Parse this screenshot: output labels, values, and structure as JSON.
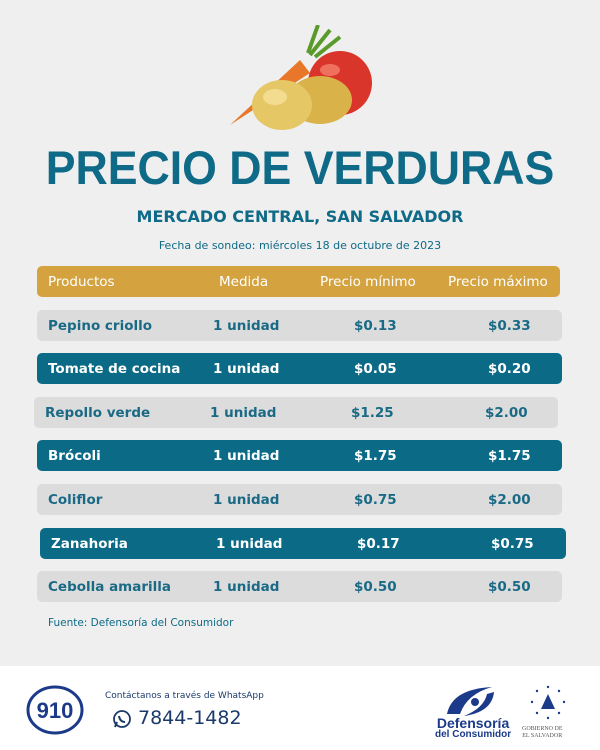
{
  "title": "PRECIO DE VERDURAS",
  "subtitle": "MERCADO CENTRAL, SAN SALVADOR",
  "date": "Fecha de sondeo: miércoles 18 de octubre de 2023",
  "table": {
    "headers": [
      "Productos",
      "Medida",
      "Precio mínimo",
      "Precio máximo"
    ],
    "rows": [
      [
        "Pepino criollo",
        "1 unidad",
        "$0.13",
        "$0.33"
      ],
      [
        "Tomate de cocina",
        "1 unidad",
        "$0.05",
        "$0.20"
      ],
      [
        "Repollo verde",
        "1 unidad",
        "$1.25",
        "$2.00"
      ],
      [
        "Brócoli",
        "1 unidad",
        "$1.75",
        "$1.75"
      ],
      [
        "Coliflor",
        "1 unidad",
        "$0.75",
        "$2.00"
      ],
      [
        "Zanahoria",
        "1 unidad",
        "$0.17",
        "$0.75"
      ],
      [
        "Cebolla amarilla",
        "1 unidad",
        "$0.50",
        "$0.50"
      ]
    ]
  },
  "source": "Fuente: Defensoría del Consumidor",
  "footer": {
    "hotline": "910",
    "whatsapp_label": "Contáctanos a través de WhatsApp",
    "whatsapp_number": "7844-1482",
    "defensoria_1": "Defensoría",
    "defensoria_2": "del Consumidor",
    "gobierno_1": "GOBIERNO DE",
    "gobierno_2": "EL SALVADOR"
  },
  "colors": {
    "teal": "#0b6a86",
    "gold": "#d4a33f",
    "grey_row": "#dcdcdc",
    "navy": "#1b3a8a"
  }
}
